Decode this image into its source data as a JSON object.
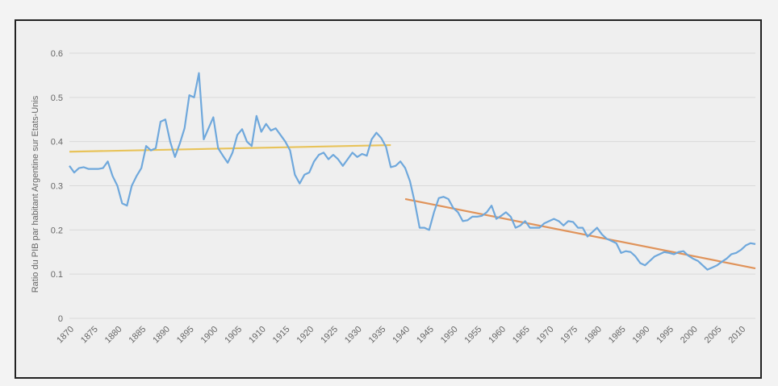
{
  "chart_data": {
    "type": "line",
    "title": "",
    "xlabel": "",
    "ylabel": "Ratio du PIB par habitant Argentine sur Etats-Unis",
    "xlim": [
      1870,
      2013
    ],
    "ylim": [
      0,
      0.6
    ],
    "grid": true,
    "y_ticks": [
      "0",
      "0.1",
      "0.2",
      "0.3",
      "0.4",
      "0.5",
      "0.6"
    ],
    "x_ticks": [
      "1870",
      "1875",
      "1880",
      "1885",
      "1890",
      "1895",
      "1900",
      "1905",
      "1910",
      "1915",
      "1920",
      "1925",
      "1930",
      "1935",
      "1940",
      "1945",
      "1950",
      "1955",
      "1960",
      "1965",
      "1970",
      "1975",
      "1980",
      "1985",
      "1990",
      "1995",
      "2000",
      "2005",
      "2010"
    ],
    "colors": {
      "series": "#6fa8dc",
      "trend_before": "#e8c35a",
      "trend_after": "#e0935a",
      "grid": "#d9d9d9"
    },
    "series": [
      {
        "x": [
          1870,
          1871,
          1872,
          1873,
          1874,
          1875,
          1876,
          1877,
          1878,
          1879,
          1880,
          1881,
          1882,
          1883,
          1884,
          1885,
          1886,
          1887,
          1888,
          1889,
          1890,
          1891,
          1892,
          1893,
          1894,
          1895,
          1896,
          1897,
          1898,
          1899,
          1900,
          1901,
          1902,
          1903,
          1904,
          1905,
          1906,
          1907,
          1908,
          1909,
          1910,
          1911,
          1912,
          1913,
          1914,
          1915,
          1916,
          1917,
          1918,
          1919,
          1920,
          1921,
          1922,
          1923,
          1924,
          1925,
          1926,
          1927,
          1928,
          1929,
          1930,
          1931,
          1932,
          1933,
          1934,
          1935,
          1936,
          1937,
          1938,
          1939,
          1940,
          1941,
          1942,
          1943,
          1944,
          1945,
          1946,
          1947,
          1948,
          1949,
          1950,
          1951,
          1952,
          1953,
          1954,
          1955,
          1956,
          1957,
          1958,
          1959,
          1960,
          1961,
          1962,
          1963,
          1964,
          1965,
          1966,
          1967,
          1968,
          1969,
          1970,
          1971,
          1972,
          1973,
          1974,
          1975,
          1976,
          1977,
          1978,
          1979,
          1980,
          1981,
          1982,
          1983,
          1984,
          1985,
          1986,
          1987,
          1988,
          1989,
          1990,
          1991,
          1992,
          1993,
          1994,
          1995,
          1996,
          1997,
          1998,
          1999,
          2000,
          2001,
          2002,
          2003,
          2004,
          2005,
          2006,
          2007,
          2008,
          2009,
          2010,
          2011,
          2012,
          2013
        ],
        "values": [
          0.345,
          0.33,
          0.34,
          0.342,
          0.338,
          0.338,
          0.338,
          0.34,
          0.355,
          0.322,
          0.3,
          0.26,
          0.255,
          0.3,
          0.322,
          0.34,
          0.39,
          0.38,
          0.385,
          0.445,
          0.45,
          0.4,
          0.365,
          0.395,
          0.43,
          0.505,
          0.5,
          0.555,
          0.405,
          0.43,
          0.455,
          0.385,
          0.368,
          0.352,
          0.375,
          0.415,
          0.428,
          0.4,
          0.39,
          0.458,
          0.422,
          0.44,
          0.425,
          0.43,
          0.415,
          0.4,
          0.38,
          0.325,
          0.305,
          0.325,
          0.33,
          0.355,
          0.37,
          0.375,
          0.36,
          0.37,
          0.36,
          0.345,
          0.36,
          0.375,
          0.365,
          0.372,
          0.368,
          0.405,
          0.42,
          0.408,
          0.388,
          0.342,
          0.345,
          0.355,
          0.34,
          0.31,
          0.262,
          0.205,
          0.205,
          0.2,
          0.24,
          0.272,
          0.275,
          0.27,
          0.25,
          0.24,
          0.22,
          0.222,
          0.23,
          0.23,
          0.232,
          0.24,
          0.255,
          0.225,
          0.232,
          0.24,
          0.23,
          0.205,
          0.21,
          0.22,
          0.205,
          0.205,
          0.205,
          0.215,
          0.22,
          0.225,
          0.22,
          0.21,
          0.22,
          0.218,
          0.205,
          0.205,
          0.185,
          0.195,
          0.205,
          0.19,
          0.18,
          0.175,
          0.17,
          0.148,
          0.152,
          0.15,
          0.14,
          0.125,
          0.12,
          0.13,
          0.14,
          0.145,
          0.15,
          0.148,
          0.145,
          0.15,
          0.152,
          0.142,
          0.135,
          0.13,
          0.12,
          0.11,
          0.115,
          0.12,
          0.128,
          0.135,
          0.145,
          0.148,
          0.155,
          0.165,
          0.17,
          0.168
        ]
      }
    ],
    "trendlines": [
      {
        "x": [
          1870,
          1937
        ],
        "values": [
          0.377,
          0.392
        ]
      },
      {
        "x": [
          1940,
          2013
        ],
        "values": [
          0.27,
          0.113
        ]
      }
    ]
  }
}
